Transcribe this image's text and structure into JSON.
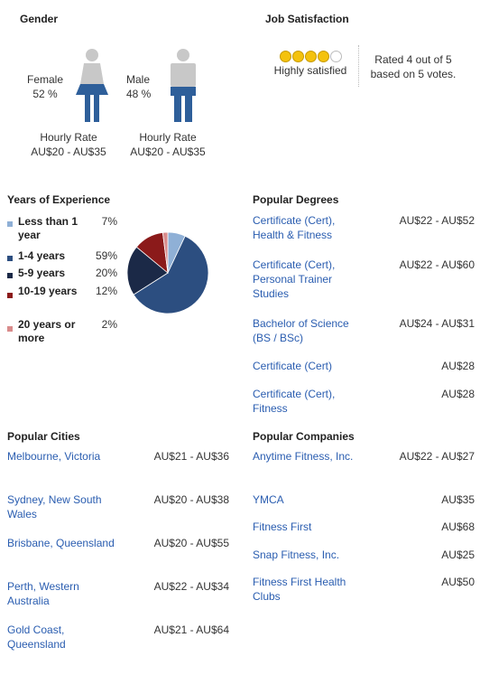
{
  "gender": {
    "title": "Gender",
    "female": {
      "label": "Female",
      "pct": "52 %",
      "rate_label": "Hourly Rate",
      "rate_value": "AU$20 - AU$35"
    },
    "male": {
      "label": "Male",
      "pct": "48 %",
      "rate_label": "Hourly Rate",
      "rate_value": "AU$20 - AU$35"
    },
    "colors": {
      "figure_top": "#c8c8c8",
      "figure_bottom": "#2e5f9a"
    }
  },
  "job_satisfaction": {
    "title": "Job Satisfaction",
    "stars_filled": 4,
    "stars_total": 5,
    "caption": "Highly satisfied",
    "rating_line1": "Rated 4 out of 5",
    "rating_line2": "based on 5 votes."
  },
  "experience": {
    "title": "Years of Experience",
    "items": [
      {
        "label": "Less than 1 year",
        "pct": "7%",
        "color": "#8fb0d6"
      },
      {
        "label": "1-4 years",
        "pct": "59%",
        "color": "#2c4e80"
      },
      {
        "label": "5-9 years",
        "pct": "20%",
        "color": "#1b2947"
      },
      {
        "label": "10-19 years",
        "pct": "12%",
        "color": "#8b1a1a"
      },
      {
        "label": "20 years or more",
        "pct": "2%",
        "color": "#d98c8c"
      }
    ]
  },
  "chart_data": {
    "type": "pie",
    "categories": [
      "Less than 1 year",
      "1-4 years",
      "5-9 years",
      "10-19 years",
      "20 years or more"
    ],
    "values": [
      7,
      59,
      20,
      12,
      2
    ],
    "colors": [
      "#8fb0d6",
      "#2c4e80",
      "#1b2947",
      "#8b1a1a",
      "#d98c8c"
    ]
  },
  "degrees": {
    "title": "Popular Degrees",
    "items": [
      {
        "name": "Certificate (Cert), Health & Fitness",
        "value": "AU$22 - AU$52"
      },
      {
        "name": "Certificate (Cert), Personal Trainer Studies",
        "value": "AU$22 - AU$60"
      },
      {
        "name": "Bachelor of Science (BS / BSc)",
        "value": "AU$24 - AU$31"
      },
      {
        "name": "Certificate (Cert)",
        "value": "AU$28"
      },
      {
        "name": "Certificate (Cert), Fitness",
        "value": "AU$28"
      }
    ]
  },
  "cities": {
    "title": "Popular Cities",
    "items": [
      {
        "name": "Melbourne, Victoria",
        "value": "AU$21 - AU$36"
      },
      {
        "name": "Sydney, New South Wales",
        "value": "AU$20 - AU$38"
      },
      {
        "name": "Brisbane, Queensland",
        "value": "AU$20 - AU$55"
      },
      {
        "name": "Perth, Western Australia",
        "value": "AU$22 - AU$34"
      },
      {
        "name": "Gold Coast, Queensland",
        "value": "AU$21 - AU$64"
      }
    ]
  },
  "companies": {
    "title": "Popular Companies",
    "items": [
      {
        "name": "Anytime Fitness, Inc.",
        "value": "AU$22 - AU$27"
      },
      {
        "name": "YMCA",
        "value": "AU$35"
      },
      {
        "name": "Fitness First",
        "value": "AU$68"
      },
      {
        "name": "Snap Fitness, Inc.",
        "value": "AU$25"
      },
      {
        "name": "Fitness First Health Clubs",
        "value": "AU$50"
      }
    ]
  }
}
